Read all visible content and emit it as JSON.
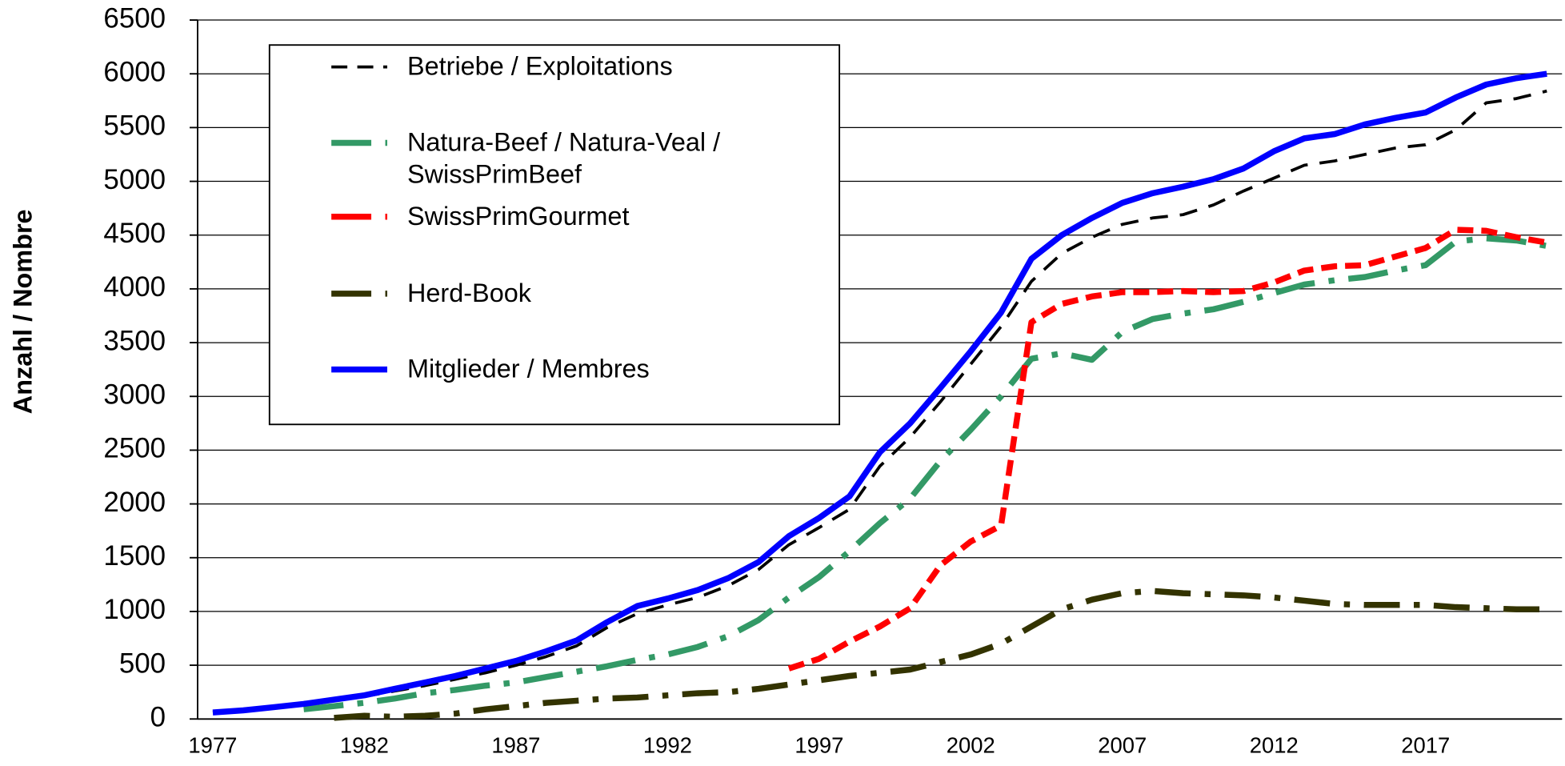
{
  "chart_data": {
    "type": "line",
    "y_label": "Anzahl / Nombre",
    "categories": [
      "1977",
      null,
      null,
      null,
      null,
      "1982",
      null,
      null,
      null,
      null,
      "1987",
      null,
      null,
      null,
      null,
      "1992",
      null,
      null,
      null,
      null,
      "1997",
      null,
      null,
      null,
      null,
      "2002",
      null,
      null,
      null,
      null,
      "2007",
      null,
      null,
      null,
      null,
      "2012",
      null,
      null,
      null,
      null,
      "2017",
      null,
      null,
      null,
      null
    ],
    "ylim": [
      0,
      6500
    ],
    "yticks": [
      0,
      500,
      1000,
      1500,
      2000,
      2500,
      3000,
      3500,
      4000,
      4500,
      5000,
      5500,
      6000,
      6500
    ],
    "grid": true,
    "legend": "upper left",
    "series": [
      {
        "name": "Betriebe / Exploitations",
        "color": "#000000",
        "dash": "18 12",
        "width": 3,
        "values": [
          60,
          80,
          110,
          140,
          170,
          210,
          260,
          310,
          370,
          430,
          500,
          580,
          680,
          850,
          980,
          1060,
          1130,
          1240,
          1390,
          1620,
          1780,
          1950,
          2350,
          2620,
          2950,
          3300,
          3650,
          4070,
          4330,
          4480,
          4600,
          4660,
          4690,
          4780,
          4910,
          5030,
          5150,
          5190,
          5250,
          5310,
          5340,
          5480,
          5730,
          5770,
          5840
        ]
      },
      {
        "name": "Natura-Beef / Natura-Veal / SwissPrimBeef",
        "color": "#339966",
        "dash": "40 14 6 14",
        "width": 6,
        "values": [
          null,
          null,
          null,
          90,
          120,
          150,
          190,
          240,
          270,
          310,
          340,
          390,
          440,
          490,
          550,
          600,
          670,
          770,
          920,
          1130,
          1320,
          1560,
          1820,
          2050,
          2400,
          2690,
          3000,
          3350,
          3400,
          3340,
          3600,
          3720,
          3770,
          3810,
          3880,
          3960,
          4040,
          4080,
          4110,
          4170,
          4220,
          4440,
          4470,
          4450,
          4400
        ]
      },
      {
        "name": "SwissPrimGourmet",
        "color": "#ff0000",
        "dash": "16 8",
        "width": 6,
        "values": [
          null,
          null,
          null,
          null,
          null,
          null,
          null,
          null,
          null,
          null,
          null,
          null,
          null,
          null,
          null,
          null,
          null,
          null,
          null,
          470,
          560,
          720,
          860,
          1030,
          1430,
          1650,
          1800,
          3690,
          3860,
          3930,
          3970,
          3970,
          3980,
          3970,
          3980,
          4060,
          4170,
          4210,
          4220,
          4300,
          4380,
          4550,
          4540,
          4480,
          4430
        ]
      },
      {
        "name": "Herd-Book",
        "color": "#333300",
        "dash": "36 14 6 14",
        "width": 6,
        "values": [
          null,
          null,
          null,
          null,
          10,
          30,
          20,
          30,
          50,
          90,
          120,
          150,
          170,
          190,
          200,
          220,
          240,
          250,
          280,
          320,
          360,
          400,
          430,
          460,
          530,
          600,
          700,
          860,
          1020,
          1110,
          1170,
          1190,
          1170,
          1160,
          1150,
          1130,
          1100,
          1070,
          1060,
          1060,
          1060,
          1040,
          1030,
          1020,
          1020
        ]
      },
      {
        "name": "Mitglieder / Membres",
        "color": "#0000ff",
        "dash": "none",
        "width": 6,
        "values": [
          60,
          80,
          110,
          140,
          180,
          220,
          280,
          340,
          400,
          470,
          540,
          630,
          730,
          900,
          1050,
          1120,
          1200,
          1310,
          1460,
          1700,
          1870,
          2070,
          2480,
          2750,
          3080,
          3420,
          3780,
          4280,
          4500,
          4660,
          4800,
          4890,
          4950,
          5020,
          5120,
          5280,
          5400,
          5440,
          5530,
          5590,
          5640,
          5780,
          5900,
          5960,
          6000
        ]
      }
    ]
  }
}
